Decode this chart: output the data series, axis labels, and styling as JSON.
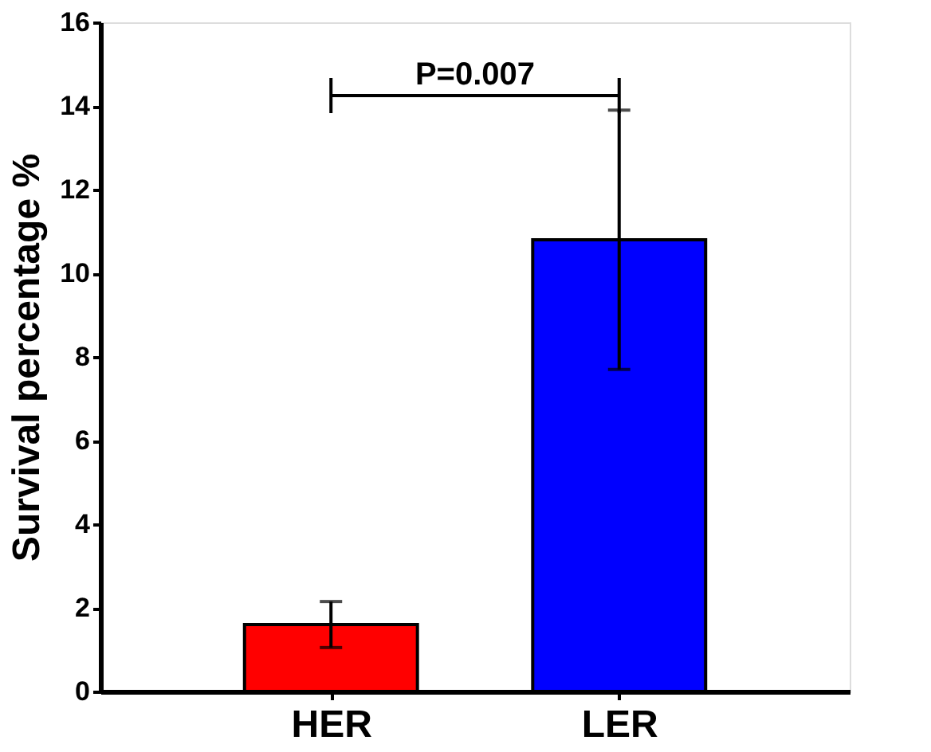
{
  "chart_data": {
    "type": "bar",
    "ylabel": "Survival percentage %",
    "categories": [
      "HER",
      "LER"
    ],
    "values": [
      1.6,
      10.8
    ],
    "colors": [
      "#ff0000",
      "#0000ff"
    ],
    "errors": [
      [
        1.05,
        2.15
      ],
      [
        7.7,
        13.9
      ]
    ],
    "ylim": [
      0,
      16
    ],
    "yticks": [
      0,
      2,
      4,
      6,
      8,
      10,
      12,
      14,
      16
    ],
    "grid": false,
    "legend": false,
    "annotations": [
      "P=0.007"
    ]
  }
}
